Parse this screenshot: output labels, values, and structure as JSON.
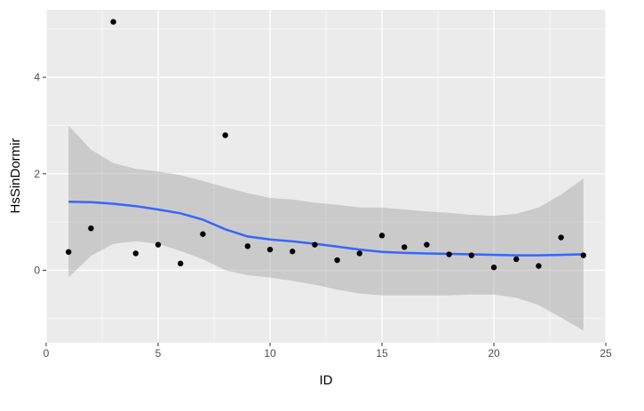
{
  "chart_data": {
    "type": "scatter",
    "title": "",
    "xlabel": "ID",
    "ylabel": "HsSinDormir",
    "xlim": [
      0,
      25
    ],
    "ylim": [
      -1.5,
      5.4
    ],
    "x_ticks": [
      0,
      5,
      10,
      15,
      20,
      25
    ],
    "y_ticks": [
      0,
      2,
      4
    ],
    "grid": true,
    "theme": "ggplot2 grey",
    "points": {
      "x": [
        1,
        2,
        3,
        4,
        5,
        6,
        7,
        8,
        9,
        10,
        11,
        12,
        13,
        14,
        15,
        16,
        17,
        18,
        19,
        20,
        21,
        22,
        23,
        24
      ],
      "y": [
        0.38,
        0.87,
        5.15,
        0.35,
        0.53,
        0.14,
        0.75,
        2.8,
        0.5,
        0.43,
        0.39,
        0.53,
        0.21,
        0.35,
        0.72,
        0.48,
        0.53,
        0.33,
        0.31,
        0.06,
        0.23,
        0.09,
        0.68,
        0.31
      ]
    },
    "smooth": {
      "method": "loess",
      "x": [
        1,
        2,
        3,
        4,
        5,
        6,
        7,
        8,
        9,
        10,
        11,
        12,
        13,
        14,
        15,
        16,
        17,
        18,
        19,
        20,
        21,
        22,
        23,
        24
      ],
      "fit": [
        1.42,
        1.41,
        1.38,
        1.33,
        1.26,
        1.18,
        1.05,
        0.85,
        0.7,
        0.64,
        0.6,
        0.55,
        0.49,
        0.43,
        0.38,
        0.36,
        0.35,
        0.34,
        0.33,
        0.32,
        0.31,
        0.31,
        0.32,
        0.33
      ],
      "lower": [
        -0.15,
        0.3,
        0.55,
        0.6,
        0.55,
        0.4,
        0.23,
        0.0,
        -0.1,
        -0.15,
        -0.22,
        -0.3,
        -0.4,
        -0.48,
        -0.52,
        -0.52,
        -0.52,
        -0.52,
        -0.5,
        -0.5,
        -0.57,
        -0.72,
        -0.98,
        -1.25
      ],
      "upper": [
        3.0,
        2.5,
        2.22,
        2.1,
        2.05,
        1.97,
        1.85,
        1.72,
        1.6,
        1.5,
        1.47,
        1.4,
        1.36,
        1.3,
        1.3,
        1.26,
        1.22,
        1.19,
        1.15,
        1.13,
        1.17,
        1.3,
        1.57,
        1.9
      ]
    },
    "colors": {
      "panel": "#ebebeb",
      "grid_major": "#ffffff",
      "point": "#000000",
      "line": "#3366ff",
      "ribbon": "#999999"
    }
  }
}
